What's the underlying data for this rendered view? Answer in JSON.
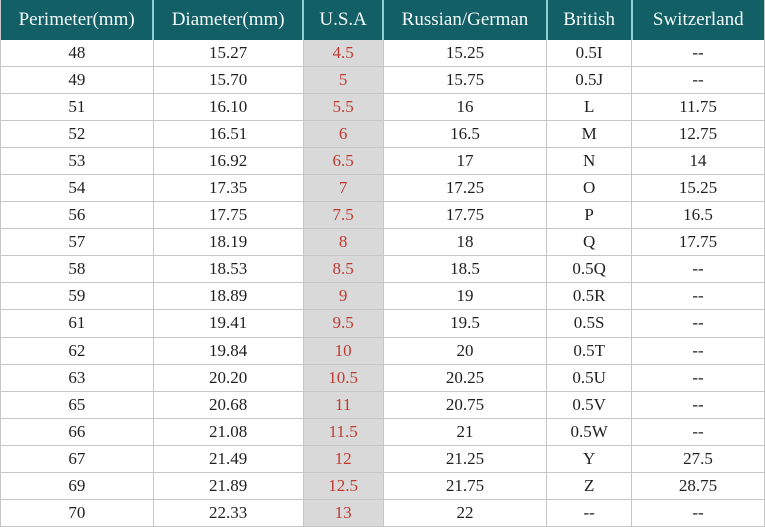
{
  "table": {
    "columns": [
      "Perimeter(mm)",
      "Diameter(mm)",
      "U.S.A",
      "Russian/German",
      "British",
      "Switzerland"
    ],
    "column_widths_percent": [
      20.0,
      19.6,
      10.5,
      21.4,
      11.1,
      17.4
    ],
    "highlighted_column": "U.S.A",
    "rows": [
      [
        "48",
        "15.27",
        "4.5",
        "15.25",
        "0.5I",
        "--"
      ],
      [
        "49",
        "15.70",
        "5",
        "15.75",
        "0.5J",
        "--"
      ],
      [
        "51",
        "16.10",
        "5.5",
        "16",
        "L",
        "11.75"
      ],
      [
        "52",
        "16.51",
        "6",
        "16.5",
        "M",
        "12.75"
      ],
      [
        "53",
        "16.92",
        "6.5",
        "17",
        "N",
        "14"
      ],
      [
        "54",
        "17.35",
        "7",
        "17.25",
        "O",
        "15.25"
      ],
      [
        "56",
        "17.75",
        "7.5",
        "17.75",
        "P",
        "16.5"
      ],
      [
        "57",
        "18.19",
        "8",
        "18",
        "Q",
        "17.75"
      ],
      [
        "58",
        "18.53",
        "8.5",
        "18.5",
        "0.5Q",
        "--"
      ],
      [
        "59",
        "18.89",
        "9",
        "19",
        "0.5R",
        "--"
      ],
      [
        "61",
        "19.41",
        "9.5",
        "19.5",
        "0.5S",
        "--"
      ],
      [
        "62",
        "19.84",
        "10",
        "20",
        "0.5T",
        "--"
      ],
      [
        "63",
        "20.20",
        "10.5",
        "20.25",
        "0.5U",
        "--"
      ],
      [
        "65",
        "20.68",
        "11",
        "20.75",
        "0.5V",
        "--"
      ],
      [
        "66",
        "21.08",
        "11.5",
        "21",
        "0.5W",
        "--"
      ],
      [
        "67",
        "21.49",
        "12",
        "21.25",
        "Y",
        "27.5"
      ],
      [
        "69",
        "21.89",
        "12.5",
        "21.75",
        "Z",
        "28.75"
      ],
      [
        "70",
        "22.33",
        "13",
        "22",
        "--",
        "--"
      ]
    ]
  },
  "colors": {
    "header_bg": "#135f66",
    "header_text": "#f2fafa",
    "header_divider": "#8ecfd4",
    "usa_column_bg": "#d9d9d9",
    "usa_text": "#c03a32",
    "body_text": "#1f1f1f",
    "grid_line": "#c6c6c6"
  }
}
